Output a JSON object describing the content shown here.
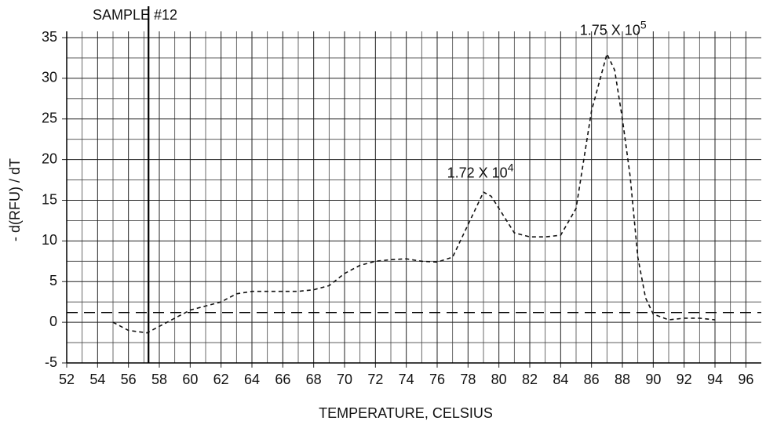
{
  "chart_data": {
    "type": "line",
    "title": "SAMPLE #12",
    "x_label": "TEMPERATURE, CELSIUS",
    "y_label": "- d(RFU) / dT",
    "xlim": [
      52,
      97
    ],
    "ylim": [
      -5,
      35
    ],
    "xticks": [
      52,
      54,
      56,
      58,
      60,
      62,
      64,
      66,
      68,
      70,
      72,
      74,
      76,
      78,
      80,
      82,
      84,
      86,
      88,
      90,
      92,
      94,
      96
    ],
    "xminorticks": [
      53,
      55,
      57,
      59,
      61,
      63,
      65,
      67,
      69,
      71,
      73,
      75,
      77,
      79,
      81,
      83,
      85,
      87,
      89,
      91,
      93,
      95
    ],
    "yticks": [
      -5,
      0,
      5,
      10,
      15,
      20,
      25,
      30,
      35
    ],
    "yminorticks": [
      -2.5,
      2.5,
      7.5,
      12.5,
      17.5,
      22.5,
      27.5,
      32.5
    ],
    "grid": true,
    "threshold_y": 1.2,
    "marker_x": 57.3,
    "series": [
      {
        "color": "#111",
        "x": [
          55,
          56,
          57.2,
          58,
          59,
          60,
          61,
          62,
          63,
          64,
          66,
          67,
          68,
          69,
          70,
          71,
          72,
          73,
          74,
          75,
          76,
          77,
          78,
          79,
          79.5,
          80,
          81,
          82,
          83,
          84,
          85,
          86,
          87,
          87.5,
          88,
          88.5,
          89,
          89.5,
          90,
          91,
          92,
          93,
          94
        ],
        "values": [
          0,
          -1,
          -1.3,
          -0.5,
          0.5,
          1.5,
          2,
          2.5,
          3.5,
          3.8,
          3.8,
          3.8,
          4,
          4.5,
          6,
          7,
          7.5,
          7.7,
          7.8,
          7.5,
          7.4,
          8,
          12,
          16,
          15.5,
          14,
          11,
          10.5,
          10.5,
          10.7,
          14,
          26,
          33,
          31,
          25,
          18,
          8,
          3,
          1,
          0.3,
          0.5,
          0.5,
          0.3
        ]
      }
    ],
    "annotations": [
      {
        "text": "1.72 X 10",
        "sup": "4",
        "x": 78.8,
        "y": 18.3
      },
      {
        "text": "1.75 X 10",
        "sup": "5",
        "x": 87.4,
        "y": 35.8
      }
    ]
  }
}
